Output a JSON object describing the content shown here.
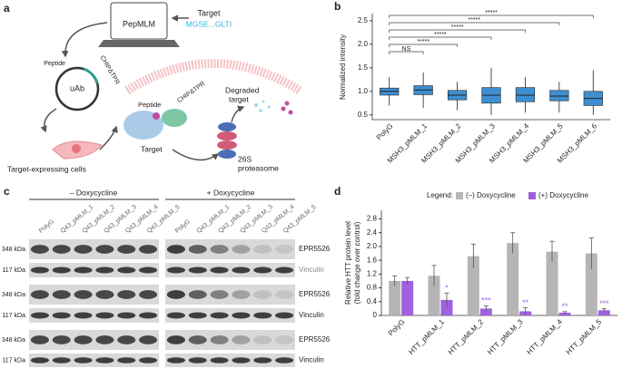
{
  "panel_labels": [
    "a",
    "b",
    "c",
    "d"
  ],
  "diagram": {
    "computer": "PepMLM",
    "target_label": "Target",
    "target_sequence": "MGSE...GLTI",
    "plasmid": {
      "peptide": "Peptide",
      "chip": "CHIPΔTPR",
      "center": "uAb"
    },
    "cells": "Target-expressing cells",
    "complex": {
      "peptide": "Peptide",
      "chip": "CHIPΔTPR",
      "target": "Target"
    },
    "degraded": [
      "Degraded",
      "target"
    ],
    "proteasome": [
      "26S",
      "proteasome"
    ]
  },
  "chart_data": [
    {
      "type": "box",
      "y_label": "Normalized intensity",
      "categories": [
        "PolyG",
        "MSH3_pMLM_1",
        "MSH3_pMLM_2",
        "MSH3_pMLM_3",
        "MSH3_pMLM_4",
        "MSH3_pMLM_5",
        "MSH3_pMLM_6"
      ],
      "boxes": [
        {
          "min": 0.7,
          "q1": 0.92,
          "median": 1.0,
          "q3": 1.07,
          "max": 1.3
        },
        {
          "min": 0.65,
          "q1": 0.93,
          "median": 1.03,
          "q3": 1.12,
          "max": 1.4
        },
        {
          "min": 0.6,
          "q1": 0.82,
          "median": 0.92,
          "q3": 1.02,
          "max": 1.2
        },
        {
          "min": 0.5,
          "q1": 0.75,
          "median": 0.92,
          "q3": 1.08,
          "max": 1.5
        },
        {
          "min": 0.55,
          "q1": 0.78,
          "median": 0.92,
          "q3": 1.08,
          "max": 1.3
        },
        {
          "min": 0.55,
          "q1": 0.8,
          "median": 0.9,
          "q3": 1.02,
          "max": 1.2
        },
        {
          "min": 0.5,
          "q1": 0.7,
          "median": 0.85,
          "q3": 1.0,
          "max": 1.45
        }
      ],
      "color": "#3d8fd1",
      "significance": [
        "NS",
        "*****",
        "*****",
        "*****",
        "*****",
        "*****"
      ],
      "ylim": [
        0.4,
        2.65
      ],
      "yticks": [
        0.5,
        {
          "value": 1,
          "label": "1.0"
        },
        1.5,
        {
          "value": 2,
          "label": "2.0"
        },
        2.5
      ]
    },
    {
      "type": "bar",
      "y_label": [
        "Relative HTT protein level",
        "(fold change over control)"
      ],
      "legend_title": "Legend:",
      "categories": [
        "PolyG",
        "HTT_pMLM_1",
        "HTT_pMLM_2",
        "HTT_pMLM_3",
        "HTT_pMLM_4",
        "HTT_pMLM_5"
      ],
      "series": [
        {
          "name": "(–) Doxycycline",
          "color": "#b5b5b5",
          "values": [
            1.0,
            1.15,
            1.72,
            2.1,
            1.85,
            1.8
          ],
          "errors": [
            0.15,
            0.3,
            0.35,
            0.3,
            0.3,
            0.45
          ],
          "significance": [
            null,
            null,
            null,
            null,
            null,
            null
          ]
        },
        {
          "name": "(+) Doxycycline",
          "color": "#a060e0",
          "values": [
            1.0,
            0.45,
            0.2,
            0.12,
            0.08,
            0.15
          ],
          "errors": [
            0.1,
            0.2,
            0.08,
            0.1,
            0.03,
            0.05
          ],
          "significance": [
            null,
            "*",
            "***",
            "**",
            "**",
            "***"
          ]
        }
      ],
      "ylim": [
        0,
        3.05
      ],
      "yticks": [
        0,
        0.4,
        0.8,
        1.2,
        1.6,
        {
          "value": 2,
          "label": "2.0"
        },
        2.4,
        2.8
      ]
    }
  ],
  "blot": {
    "conditions": [
      "– Doxycycline",
      "+ Doxycycline"
    ],
    "lanes": [
      "PolyG",
      "Q43_pMLM_1",
      "Q43_pMLM_2",
      "Q43_pMLM_3",
      "Q43_pMLM_4",
      "Q43_pMLM_5"
    ],
    "markers": [
      "348 kDa",
      "117 kDa",
      "348 kDa",
      "117 kDa",
      "348 kDa",
      "117 kDa"
    ],
    "proteins": [
      "EPR5526",
      "Vinculin",
      "EPR5526",
      "Vinculin",
      "EPR5526",
      "Vinculin"
    ]
  }
}
